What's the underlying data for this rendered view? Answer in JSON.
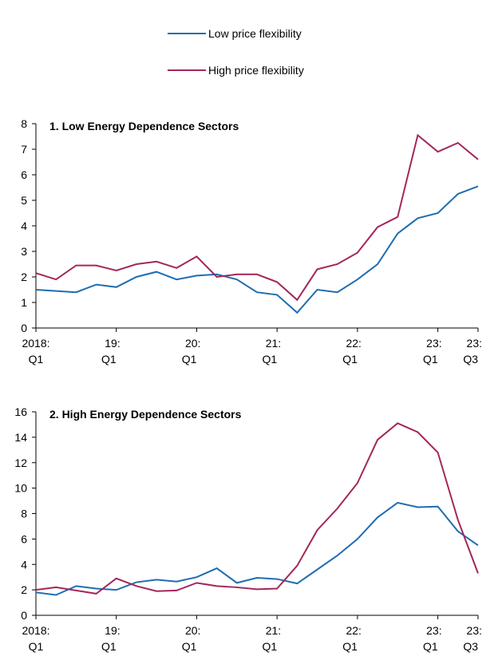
{
  "chart_data": [
    {
      "type": "line",
      "title": "1. Low Energy Dependence Sectors",
      "categories": [
        [
          "2018:",
          "Q1"
        ],
        null,
        null,
        null,
        [
          "19:",
          "Q1"
        ],
        null,
        null,
        null,
        [
          "20:",
          "Q1"
        ],
        null,
        null,
        null,
        [
          "21:",
          "Q1"
        ],
        null,
        null,
        null,
        [
          "22:",
          "Q1"
        ],
        null,
        null,
        null,
        [
          "23:",
          "Q1"
        ],
        null,
        [
          "23:",
          "Q3"
        ]
      ],
      "ylim": [
        0,
        8
      ],
      "yticks": [
        0,
        1,
        2,
        3,
        4,
        5,
        6,
        7,
        8
      ],
      "series": [
        {
          "name": "Low price flexibility",
          "color": "#1f6db0",
          "values": [
            1.5,
            1.45,
            1.4,
            1.7,
            1.6,
            2.0,
            2.2,
            1.9,
            2.05,
            2.1,
            1.9,
            1.4,
            1.3,
            0.6,
            1.5,
            1.4,
            1.9,
            2.5,
            3.7,
            4.3,
            4.5,
            5.25,
            5.55
          ]
        },
        {
          "name": "High price flexibility",
          "color": "#a3275b",
          "values": [
            2.15,
            1.9,
            2.45,
            2.45,
            2.25,
            2.5,
            2.6,
            2.35,
            2.8,
            2.0,
            2.1,
            2.1,
            1.8,
            1.1,
            2.3,
            2.5,
            2.95,
            3.95,
            4.35,
            7.55,
            6.9,
            7.25,
            6.6
          ]
        }
      ]
    },
    {
      "type": "line",
      "title": "2. High Energy Dependence Sectors",
      "categories": [
        [
          "2018:",
          "Q1"
        ],
        null,
        null,
        null,
        [
          "19:",
          "Q1"
        ],
        null,
        null,
        null,
        [
          "20:",
          "Q1"
        ],
        null,
        null,
        null,
        [
          "21:",
          "Q1"
        ],
        null,
        null,
        null,
        [
          "22:",
          "Q1"
        ],
        null,
        null,
        null,
        [
          "23:",
          "Q1"
        ],
        null,
        [
          "23:",
          "Q3"
        ]
      ],
      "ylim": [
        0,
        16
      ],
      "yticks": [
        0,
        2,
        4,
        6,
        8,
        10,
        12,
        14,
        16
      ],
      "series": [
        {
          "color": "#1f6db0",
          "values": [
            1.8,
            1.6,
            2.3,
            2.1,
            2.0,
            2.6,
            2.8,
            2.65,
            3.0,
            3.7,
            2.55,
            2.95,
            2.85,
            2.5,
            3.6,
            4.7,
            6.0,
            7.7,
            8.85,
            8.5,
            8.55,
            6.6,
            5.5
          ]
        },
        {
          "color": "#a3275b",
          "values": [
            2.0,
            2.2,
            1.95,
            1.7,
            2.9,
            2.3,
            1.9,
            1.95,
            2.55,
            2.3,
            2.2,
            2.05,
            2.1,
            3.9,
            6.7,
            8.4,
            10.4,
            13.8,
            15.1,
            14.4,
            12.8,
            7.5,
            3.3
          ]
        }
      ]
    }
  ]
}
